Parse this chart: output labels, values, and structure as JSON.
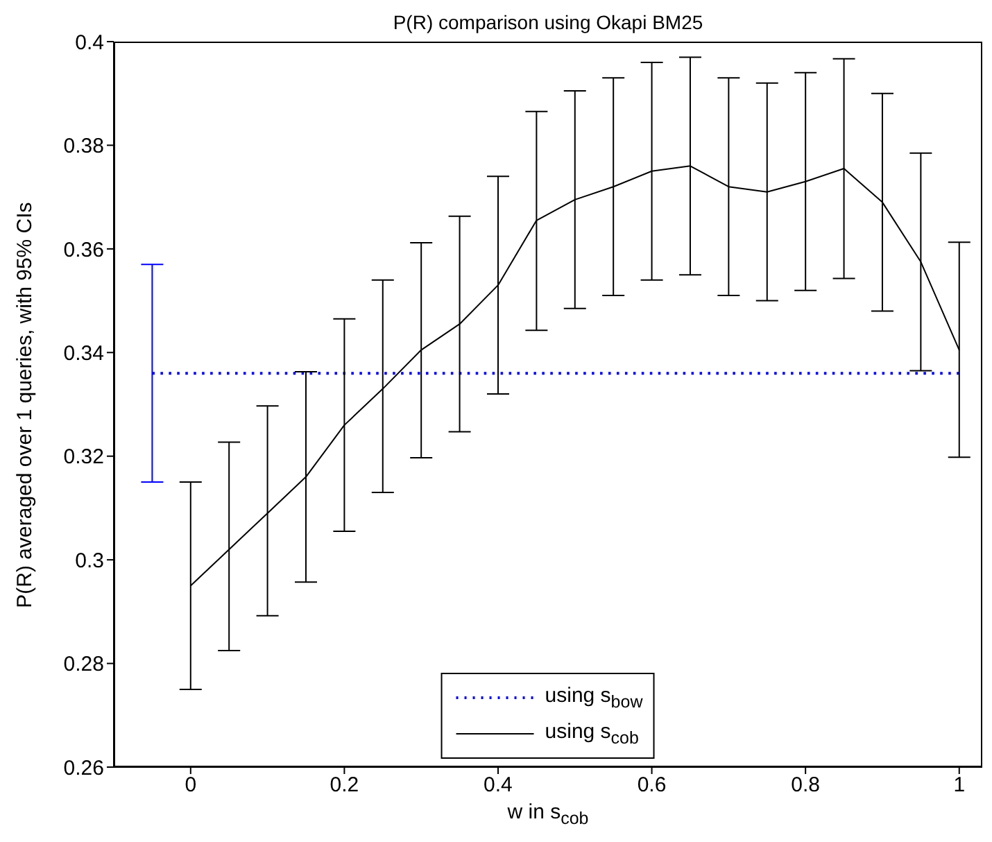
{
  "chart_data": {
    "type": "line",
    "title": "P(R) comparison using Okapi BM25",
    "xlabel": "w in s$_{cob}$",
    "ylabel": "P(R) averaged over 1 queries, with 95% CIs",
    "xlim": [
      -0.1,
      1.03
    ],
    "xticks": [
      0,
      0.2,
      0.4,
      0.6,
      0.8,
      1
    ],
    "ylim": [
      0.26,
      0.4
    ],
    "yticks": [
      0.26,
      0.28,
      0.3,
      0.32,
      0.34,
      0.36,
      0.38,
      0.4
    ],
    "grid": false,
    "legend": "bottom",
    "marker": "none",
    "series": [
      {
        "name": "using s$_{bow}$",
        "color": "#0000ff",
        "line_style": "dotted",
        "x": [
          -0.05,
          1
        ],
        "values": [
          0.336,
          0.336
        ],
        "errors": [
          [
            0.315,
            0.357
          ],
          null
        ]
      },
      {
        "name": "using s$_{cob}$",
        "color": "#000000",
        "line_style": "solid",
        "x": [
          0,
          0.05,
          0.1,
          0.15,
          0.2,
          0.25,
          0.3,
          0.35,
          0.4,
          0.45,
          0.5,
          0.55,
          0.6,
          0.65,
          0.7,
          0.75,
          0.8,
          0.85,
          0.9,
          0.95,
          1
        ],
        "values": [
          0.295,
          0.302,
          0.309,
          0.316,
          0.326,
          0.333,
          0.3405,
          0.3455,
          0.353,
          0.3655,
          0.3695,
          0.372,
          0.375,
          0.376,
          0.372,
          0.371,
          0.373,
          0.3755,
          0.369,
          0.3575,
          0.3405
        ],
        "errors": [
          [
            0.275,
            0.315
          ],
          [
            0.2825,
            0.3227
          ],
          [
            0.2892,
            0.3297
          ],
          [
            0.2957,
            0.3363
          ],
          [
            0.3055,
            0.3465
          ],
          [
            0.313,
            0.354
          ],
          [
            0.3197,
            0.3612
          ],
          [
            0.3247,
            0.3663
          ],
          [
            0.332,
            0.374
          ],
          [
            0.3443,
            0.3865
          ],
          [
            0.3485,
            0.3905
          ],
          [
            0.351,
            0.393
          ],
          [
            0.354,
            0.396
          ],
          [
            0.355,
            0.397
          ],
          [
            0.351,
            0.393
          ],
          [
            0.35,
            0.392
          ],
          [
            0.352,
            0.394
          ],
          [
            0.3543,
            0.3967
          ],
          [
            0.348,
            0.39
          ],
          [
            0.3365,
            0.3785
          ],
          [
            0.3198,
            0.3613
          ]
        ]
      }
    ]
  }
}
